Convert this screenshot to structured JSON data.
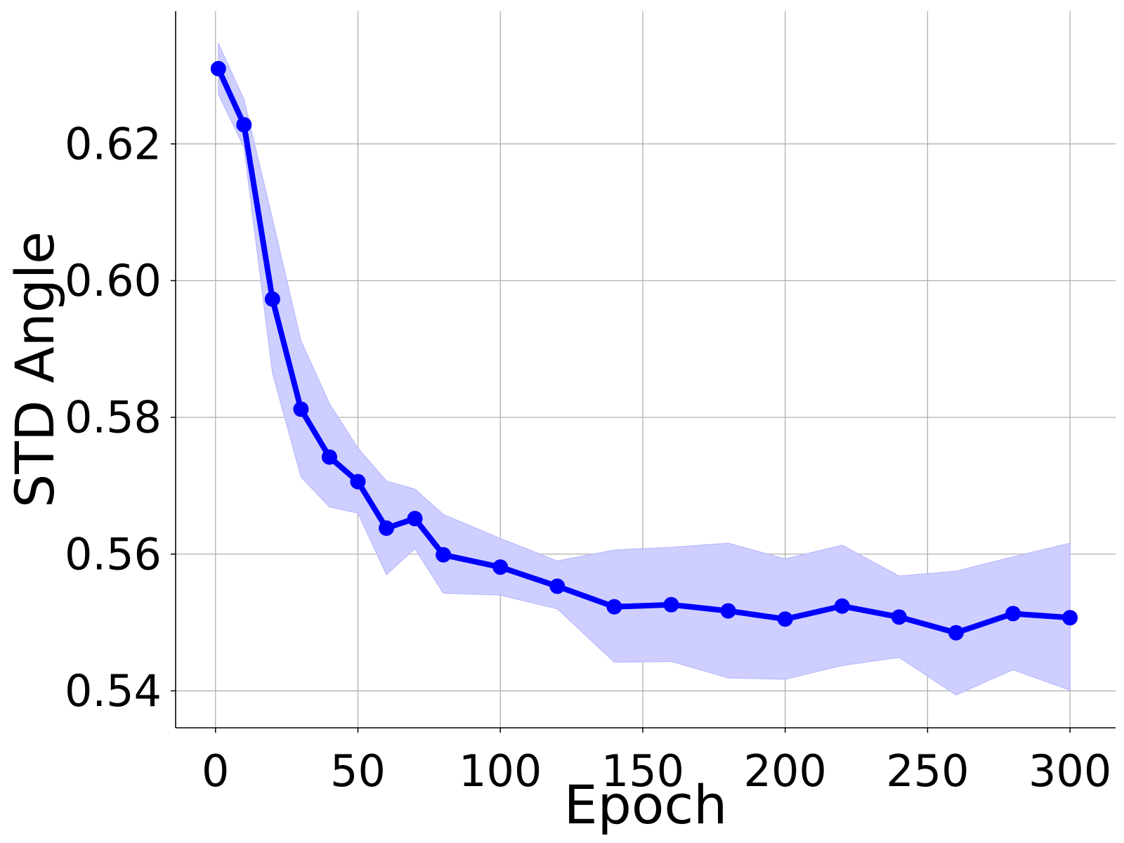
{
  "chart_data": {
    "type": "line",
    "xlabel": "Epoch",
    "ylabel": "STD Angle",
    "xlim": [
      -14,
      316
    ],
    "ylim": [
      0.5346,
      0.6394
    ],
    "x_ticks": [
      0,
      50,
      100,
      150,
      200,
      250,
      300
    ],
    "y_ticks": [
      0.54,
      0.56,
      0.58,
      0.6,
      0.62
    ],
    "x_tick_labels": [
      "0",
      "50",
      "100",
      "150",
      "200",
      "250",
      "300"
    ],
    "y_tick_labels": [
      "0.54",
      "0.56",
      "0.58",
      "0.60",
      "0.62"
    ],
    "grid": true,
    "series": [
      {
        "color": "#0000ff",
        "band_color": "#ccccff",
        "x": [
          1,
          10,
          20,
          30,
          40,
          50,
          60,
          70,
          80,
          100,
          120,
          140,
          160,
          180,
          200,
          220,
          240,
          260,
          280,
          300
        ],
        "y": [
          0.631,
          0.6228,
          0.5973,
          0.5812,
          0.5742,
          0.5706,
          0.5638,
          0.5652,
          0.5599,
          0.5581,
          0.5553,
          0.5523,
          0.5526,
          0.5517,
          0.5505,
          0.5524,
          0.5508,
          0.5485,
          0.5513,
          0.5507
        ],
        "upper": [
          0.6347,
          0.6265,
          0.609,
          0.5912,
          0.582,
          0.5755,
          0.5707,
          0.5695,
          0.5658,
          0.5623,
          0.559,
          0.5606,
          0.561,
          0.5616,
          0.5593,
          0.5613,
          0.5568,
          0.5575,
          0.5596,
          0.5616
        ],
        "lower": [
          0.6273,
          0.6195,
          0.5865,
          0.5713,
          0.5669,
          0.566,
          0.557,
          0.5608,
          0.5543,
          0.554,
          0.552,
          0.5442,
          0.5443,
          0.5419,
          0.5417,
          0.5437,
          0.5449,
          0.5394,
          0.5431,
          0.5401
        ]
      }
    ]
  }
}
